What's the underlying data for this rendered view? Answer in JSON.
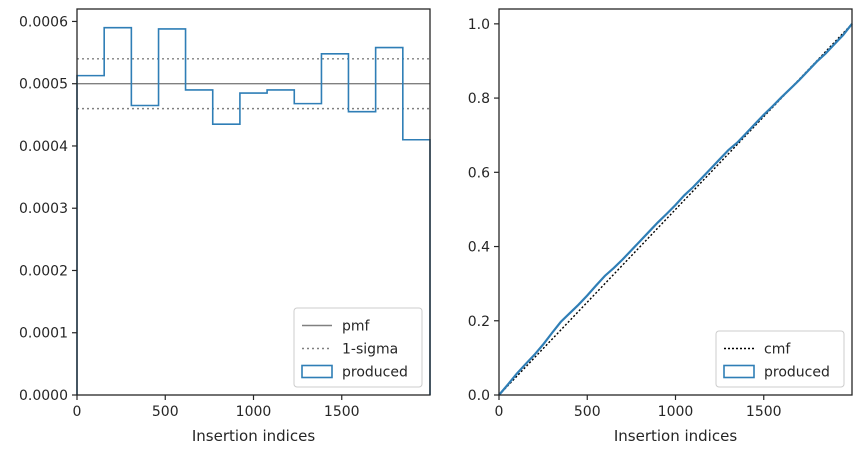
{
  "chart_data": [
    {
      "type": "line",
      "xlabel": "Insertion indices",
      "ylabel": "",
      "xlim": [
        0,
        2000
      ],
      "ylim": [
        0,
        0.00062
      ],
      "xticks": [
        0,
        500,
        1000,
        1500
      ],
      "xtick_labels": [
        "0",
        "500",
        "1000",
        "1500"
      ],
      "yticks": [
        0,
        0.0001,
        0.0002,
        0.0003,
        0.0004,
        0.0005,
        0.0006
      ],
      "ytick_labels": [
        "0.0000",
        "0.0001",
        "0.0002",
        "0.0003",
        "0.0004",
        "0.0005",
        "0.0006"
      ],
      "grid": false,
      "legend_position": "lower-right",
      "legend": [
        "pmf",
        "1-sigma",
        "produced"
      ],
      "reference_lines": [
        {
          "name": "pmf",
          "y": 0.0005,
          "style": "solid",
          "color": "#808080"
        },
        {
          "name": "1-sigma",
          "y": 0.00054,
          "style": "dotted",
          "color": "#808080"
        },
        {
          "name": "1-sigma",
          "y": 0.00046,
          "style": "dotted",
          "color": "#808080"
        }
      ],
      "histogram": {
        "name": "produced",
        "color": "#2f7eb6",
        "bin_edges": [
          0,
          154,
          308,
          462,
          615,
          769,
          923,
          1077,
          1231,
          1385,
          1538,
          1692,
          1846,
          2000
        ],
        "values": [
          0.000513,
          0.00059,
          0.000465,
          0.000588,
          0.00049,
          0.000435,
          0.000485,
          0.00049,
          0.000468,
          0.000548,
          0.000455,
          0.000558,
          0.00041
        ]
      }
    },
    {
      "type": "line",
      "xlabel": "Insertion indices",
      "ylabel": "",
      "xlim": [
        0,
        2000
      ],
      "ylim": [
        0,
        1.04
      ],
      "xticks": [
        0,
        500,
        1000,
        1500
      ],
      "xtick_labels": [
        "0",
        "500",
        "1000",
        "1500"
      ],
      "yticks": [
        0,
        0.2,
        0.4,
        0.6,
        0.8,
        1.0
      ],
      "ytick_labels": [
        "0.0",
        "0.2",
        "0.4",
        "0.6",
        "0.8",
        "1.0"
      ],
      "grid": false,
      "legend_position": "lower-right",
      "legend": [
        "cmf",
        "produced"
      ],
      "series": [
        {
          "name": "cmf",
          "style": "dotted",
          "color": "#000000",
          "x": [
            0,
            2000
          ],
          "y": [
            0,
            1.0
          ]
        },
        {
          "name": "produced",
          "style": "solid",
          "color": "#2f7eb6",
          "x": [
            0,
            50,
            100,
            150,
            200,
            250,
            300,
            350,
            400,
            450,
            500,
            550,
            600,
            650,
            700,
            750,
            800,
            850,
            900,
            950,
            1000,
            1050,
            1100,
            1150,
            1200,
            1250,
            1300,
            1350,
            1400,
            1450,
            1500,
            1550,
            1600,
            1650,
            1700,
            1750,
            1800,
            1850,
            1900,
            1950,
            2000
          ],
          "y": [
            0,
            0.028,
            0.057,
            0.083,
            0.108,
            0.136,
            0.167,
            0.197,
            0.22,
            0.243,
            0.268,
            0.295,
            0.321,
            0.342,
            0.365,
            0.39,
            0.415,
            0.44,
            0.465,
            0.488,
            0.512,
            0.538,
            0.56,
            0.585,
            0.61,
            0.635,
            0.66,
            0.68,
            0.705,
            0.73,
            0.755,
            0.778,
            0.802,
            0.825,
            0.848,
            0.873,
            0.898,
            0.92,
            0.945,
            0.97,
            1.0
          ]
        }
      ]
    }
  ]
}
